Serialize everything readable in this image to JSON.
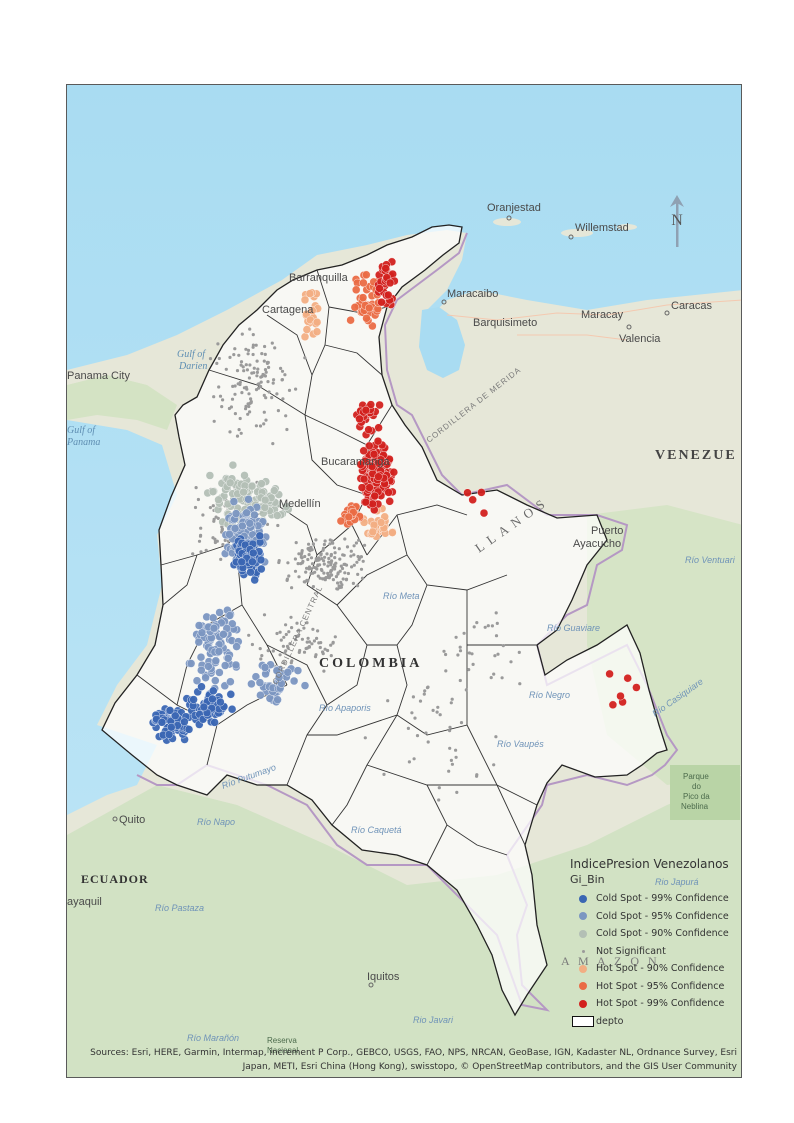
{
  "map": {
    "labels": {
      "oranjestad": "Oranjestad",
      "willemstad": "Willemstad",
      "barranquilla": "Barranquilla",
      "cartagena": "Cartagena",
      "maracaibo": "Maracaibo",
      "barquisimeto": "Barquisimeto",
      "maracay": "Maracay",
      "caracas": "Caracas",
      "valencia": "Valencia",
      "panama_city": "Panama City",
      "gulf_darien_1": "Gulf of",
      "gulf_darien_2": "Darien",
      "gulf_panama_1": "Gulf of",
      "gulf_panama_2": "Panama",
      "bucaramanga": "Bucaramanga",
      "medellin": "Medellín",
      "venezuela": "VENEZUE",
      "puerto_ayacucho_1": "Puerto",
      "puerto_ayacucho_2": "Ayacucho",
      "colombia": "COLOMBIA",
      "llanos": "LLANOS",
      "cordillera_merida": "CORDILLERA DE MERIDA",
      "cordillera_central": "CORDILLERA CENTRAL",
      "rio_meta": "Río Meta",
      "rio_ventuari": "Río Ventuari",
      "rio_guaviare": "Río Guaviare",
      "rio_negro": "Río Negro",
      "rio_apaporis": "Río Apaporis",
      "rio_vaupes": "Río Vaupés",
      "rio_casiquiare": "Río Casiquiare",
      "rio_caqueta": "Río Caquetá",
      "rio_putumayo": "Río Putumayo",
      "rio_napo": "Río Napo",
      "rio_japura": "Rio Japurá",
      "rio_pastaza": "Río Pastaza",
      "rio_javari": "Rio Javari",
      "rio_maranon": "Río Marañón",
      "quito": "Quito",
      "ecuador": "ECUADOR",
      "guayaquil": "ayaquil",
      "iquitos": "Iquitos",
      "amazon": "A M A Z O N",
      "pico_neblina_1": "Parque",
      "pico_neblina_2": "do",
      "pico_neblina_3": "Pico da",
      "pico_neblina_4": "Neblina",
      "reserva_1": "Reserva",
      "reserva_2": "Nacional"
    },
    "north_arrow_label": "N"
  },
  "legend": {
    "title": "IndicePresion Venezolanos",
    "field": "Gi_Bin",
    "items": [
      {
        "label": "Cold Spot - 99% Confidence",
        "color": "#3a66b3"
      },
      {
        "label": "Cold Spot - 95% Confidence",
        "color": "#7b96c1"
      },
      {
        "label": "Cold Spot - 90% Confidence",
        "color": "#b3bfb5"
      },
      {
        "label": "Not Significant",
        "color": "#9a9a9a"
      },
      {
        "label": "Hot Spot - 90% Confidence",
        "color": "#f2ae83"
      },
      {
        "label": "Hot Spot - 95% Confidence",
        "color": "#ea6b45"
      },
      {
        "label": "Hot Spot - 99% Confidence",
        "color": "#d2211e"
      }
    ],
    "boundary_label": "depto"
  },
  "attribution": {
    "line1": "Sources: Esri, HERE, Garmin, Intermap, increment P Corp., GEBCO, USGS, FAO, NPS, NRCAN, GeoBase, IGN, Kadaster NL, Ordnance Survey, Esri",
    "line2": "Japan, METI, Esri China (Hong Kong), swisstopo, © OpenStreetMap contributors, and the GIS User Community"
  }
}
